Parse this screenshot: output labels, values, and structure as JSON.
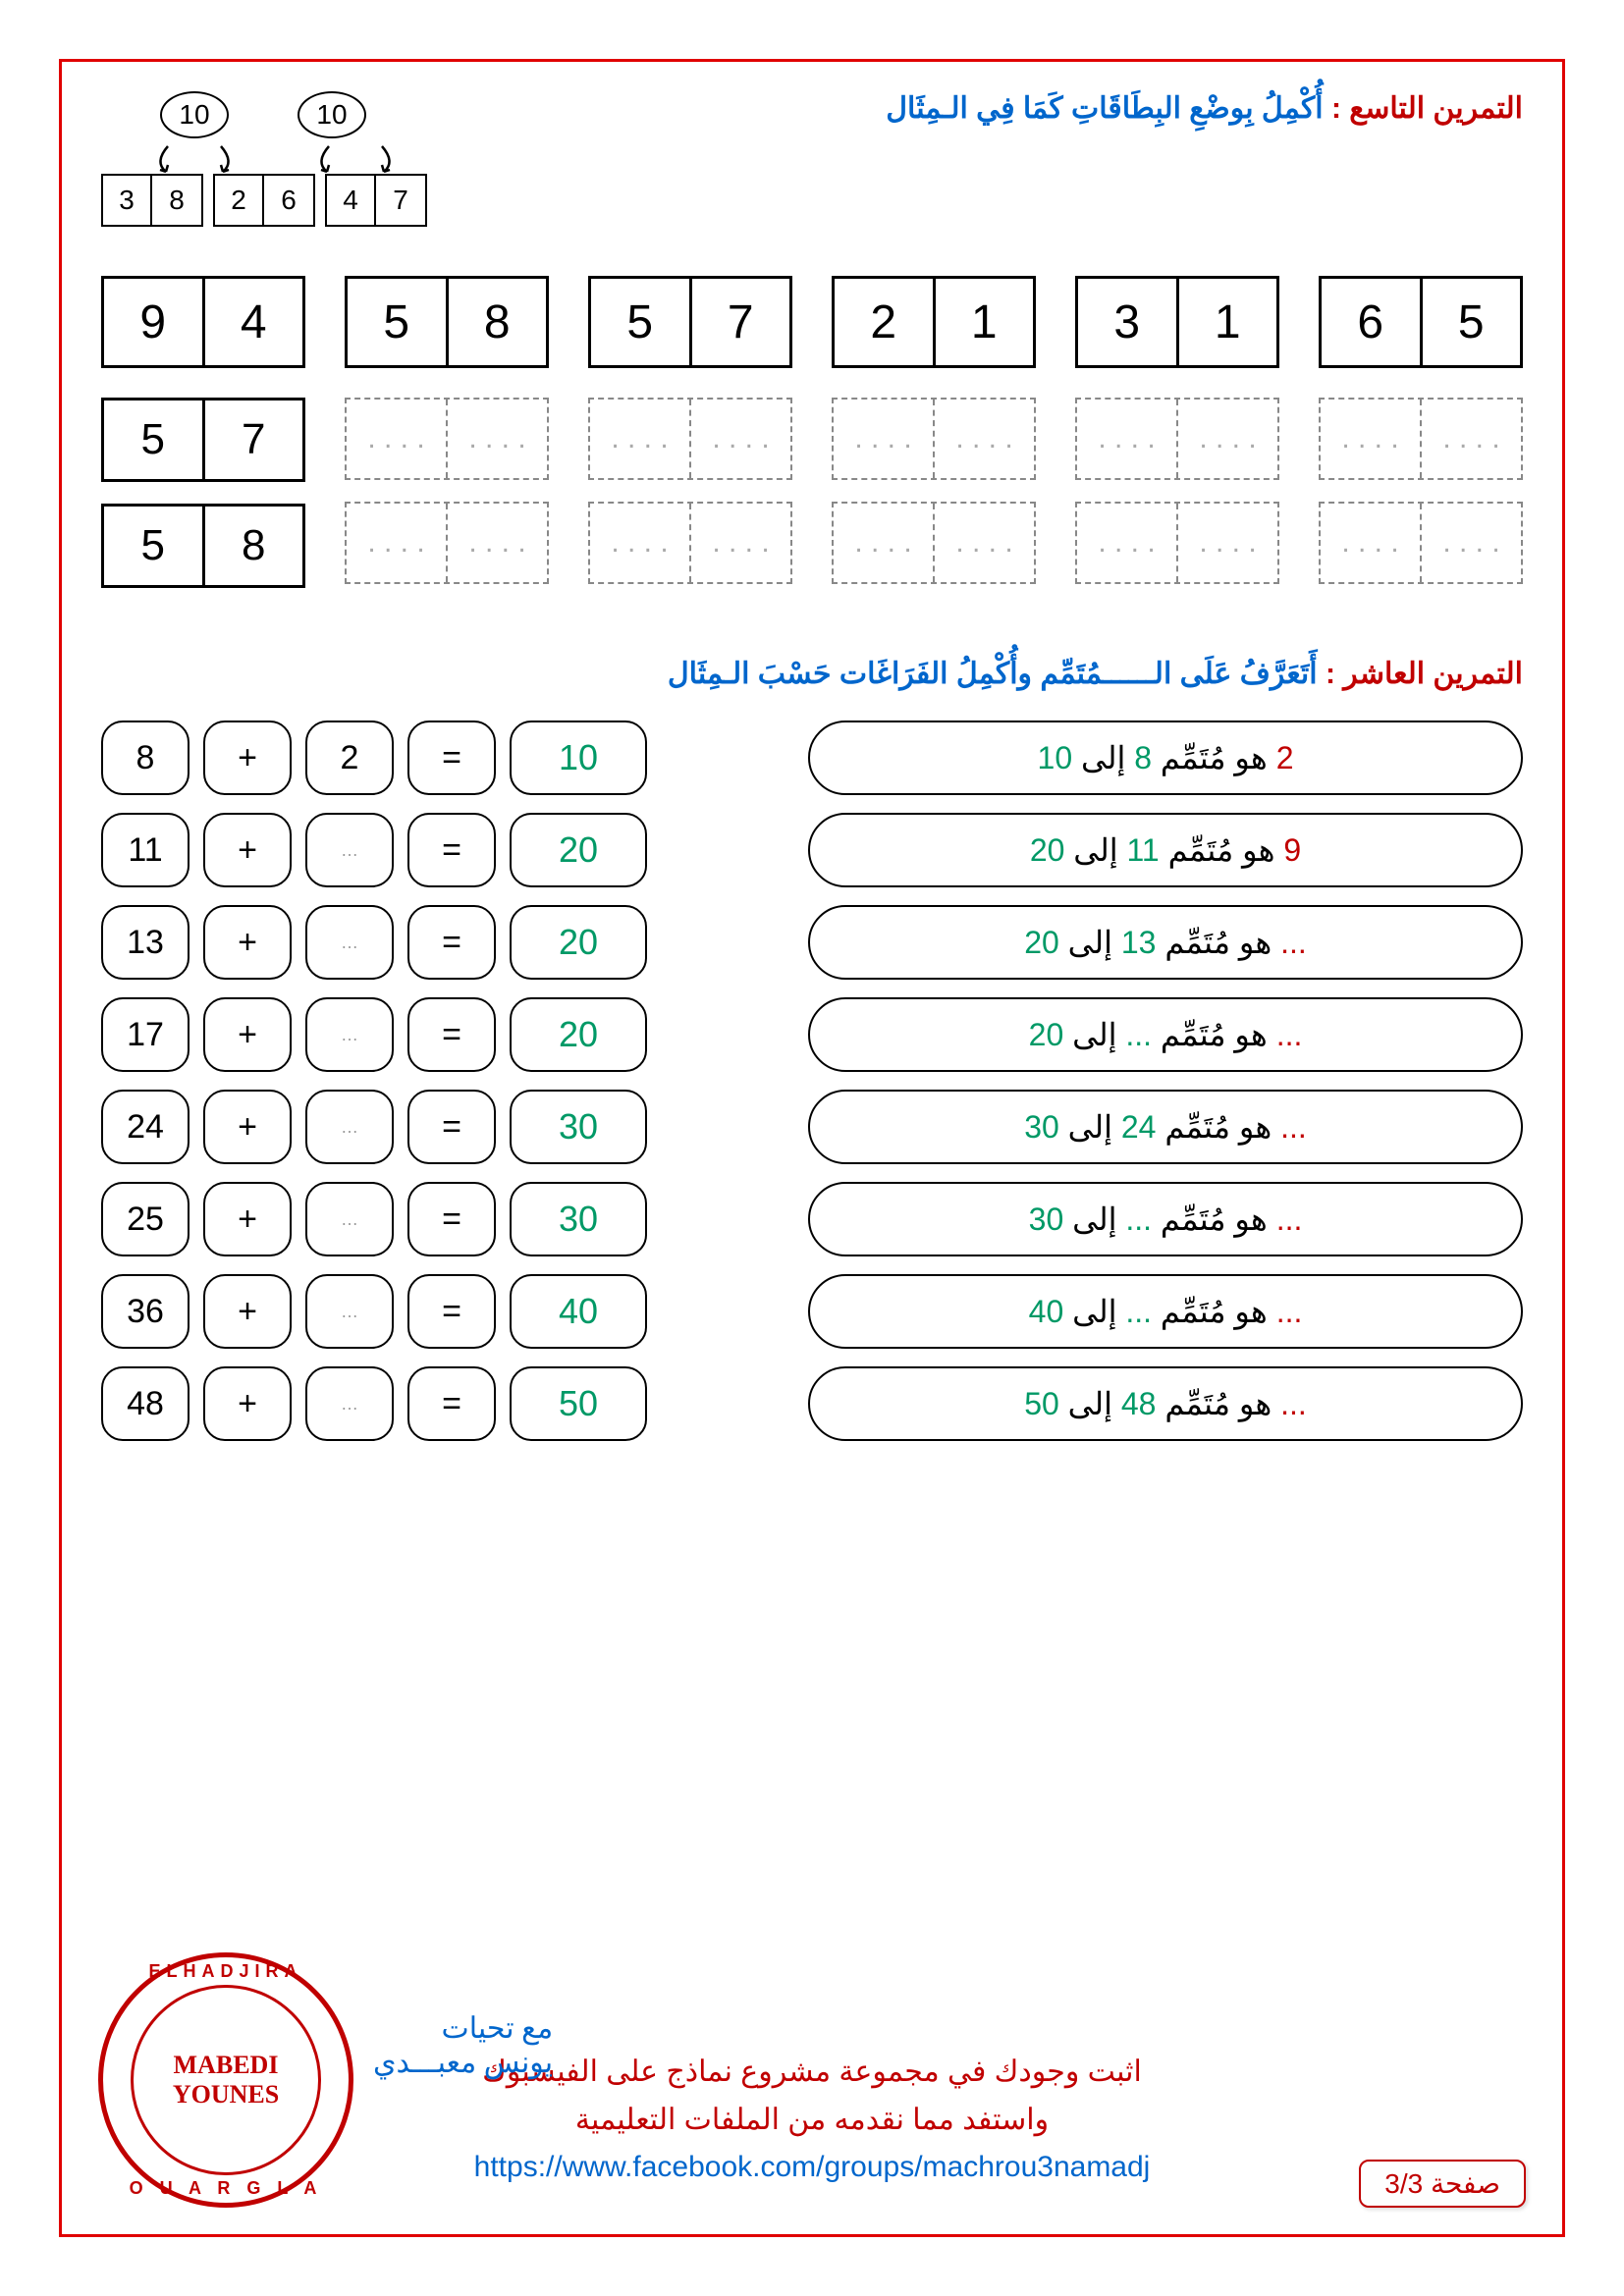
{
  "ex9": {
    "label": "التمرين التاسع :",
    "instruction": "أُكْمِلُ بِوضْعِ البِطَاقَاتِ كَمَا فِي الـمِثَال",
    "example": {
      "ovals": [
        "10",
        "10"
      ],
      "pairs": [
        [
          "3",
          "8"
        ],
        [
          "2",
          "6"
        ],
        [
          "4",
          "7"
        ]
      ]
    },
    "row1": [
      [
        "9",
        "4"
      ],
      [
        "5",
        "8"
      ],
      [
        "5",
        "7"
      ],
      [
        "2",
        "1"
      ],
      [
        "3",
        "1"
      ],
      [
        "6",
        "5"
      ]
    ],
    "answer_first": [
      [
        "5",
        "7"
      ],
      [
        "5",
        "8"
      ]
    ],
    "dots": ". . . ."
  },
  "ex10": {
    "label": "التمرين العاشر :",
    "instruction": "أَتَعَرَّفُ عَلَى الــــــمُتَمِّم وأُكْمِلُ الفَرَاغَات حَسْبَ الـمِثَال",
    "rows": [
      {
        "a": "8",
        "op": "+",
        "b": "2",
        "eq": "=",
        "r": "10",
        "text_parts": [
          {
            "t": "2",
            "c": "red"
          },
          {
            "t": " هو مُتَمِّم ",
            "c": "black"
          },
          {
            "t": "8",
            "c": "green"
          },
          {
            "t": " إلى ",
            "c": "black"
          },
          {
            "t": "10",
            "c": "green"
          }
        ]
      },
      {
        "a": "11",
        "op": "+",
        "b": "…",
        "eq": "=",
        "r": "20",
        "text_parts": [
          {
            "t": "9",
            "c": "red"
          },
          {
            "t": " هو مُتَمِّم ",
            "c": "black"
          },
          {
            "t": "11",
            "c": "green"
          },
          {
            "t": " إلى ",
            "c": "black"
          },
          {
            "t": "20",
            "c": "green"
          }
        ]
      },
      {
        "a": "13",
        "op": "+",
        "b": "…",
        "eq": "=",
        "r": "20",
        "text_parts": [
          {
            "t": "...",
            "c": "red"
          },
          {
            "t": " هو مُتَمِّم ",
            "c": "black"
          },
          {
            "t": "13",
            "c": "green"
          },
          {
            "t": " إلى ",
            "c": "black"
          },
          {
            "t": "20",
            "c": "green"
          }
        ]
      },
      {
        "a": "17",
        "op": "+",
        "b": "…",
        "eq": "=",
        "r": "20",
        "text_parts": [
          {
            "t": "...",
            "c": "red"
          },
          {
            "t": " هو مُتَمِّم ",
            "c": "black"
          },
          {
            "t": "...",
            "c": "green"
          },
          {
            "t": " إلى ",
            "c": "black"
          },
          {
            "t": "20",
            "c": "green"
          }
        ]
      },
      {
        "a": "24",
        "op": "+",
        "b": "…",
        "eq": "=",
        "r": "30",
        "text_parts": [
          {
            "t": "...",
            "c": "red"
          },
          {
            "t": " هو مُتَمِّم ",
            "c": "black"
          },
          {
            "t": "24",
            "c": "green"
          },
          {
            "t": " إلى ",
            "c": "black"
          },
          {
            "t": "30",
            "c": "green"
          }
        ]
      },
      {
        "a": "25",
        "op": "+",
        "b": "…",
        "eq": "=",
        "r": "30",
        "text_parts": [
          {
            "t": "...",
            "c": "red"
          },
          {
            "t": " هو مُتَمِّم ",
            "c": "black"
          },
          {
            "t": "...",
            "c": "green"
          },
          {
            "t": " إلى ",
            "c": "black"
          },
          {
            "t": "30",
            "c": "green"
          }
        ]
      },
      {
        "a": "36",
        "op": "+",
        "b": "…",
        "eq": "=",
        "r": "40",
        "text_parts": [
          {
            "t": "...",
            "c": "red"
          },
          {
            "t": " هو مُتَمِّم ",
            "c": "black"
          },
          {
            "t": "...",
            "c": "green"
          },
          {
            "t": " إلى ",
            "c": "black"
          },
          {
            "t": "40",
            "c": "green"
          }
        ]
      },
      {
        "a": "48",
        "op": "+",
        "b": "…",
        "eq": "=",
        "r": "50",
        "text_parts": [
          {
            "t": "...",
            "c": "red"
          },
          {
            "t": " هو مُتَمِّم ",
            "c": "black"
          },
          {
            "t": "48",
            "c": "green"
          },
          {
            "t": " إلى ",
            "c": "black"
          },
          {
            "t": "50",
            "c": "green"
          }
        ]
      }
    ]
  },
  "footer": {
    "line1": "اثبت وجودك في مجموعة مشروع نماذج على الفيسبوك",
    "line2": "واستفد مما نقدمه من الملفات التعليمية",
    "link": "https://www.facebook.com/groups/machrou3namadj",
    "greet1": "مع تحيات",
    "greet2": "يونس معبـــدي",
    "stamp1": "MABEDI",
    "stamp2": "YOUNES",
    "stamp_top": "ELHADJIRA",
    "stamp_bot": "O U A R G L A",
    "page": "صفحة 3/3"
  },
  "colors": {
    "red": "#c00000",
    "blue": "#0066cc",
    "green": "#009966",
    "black": "#000000"
  }
}
